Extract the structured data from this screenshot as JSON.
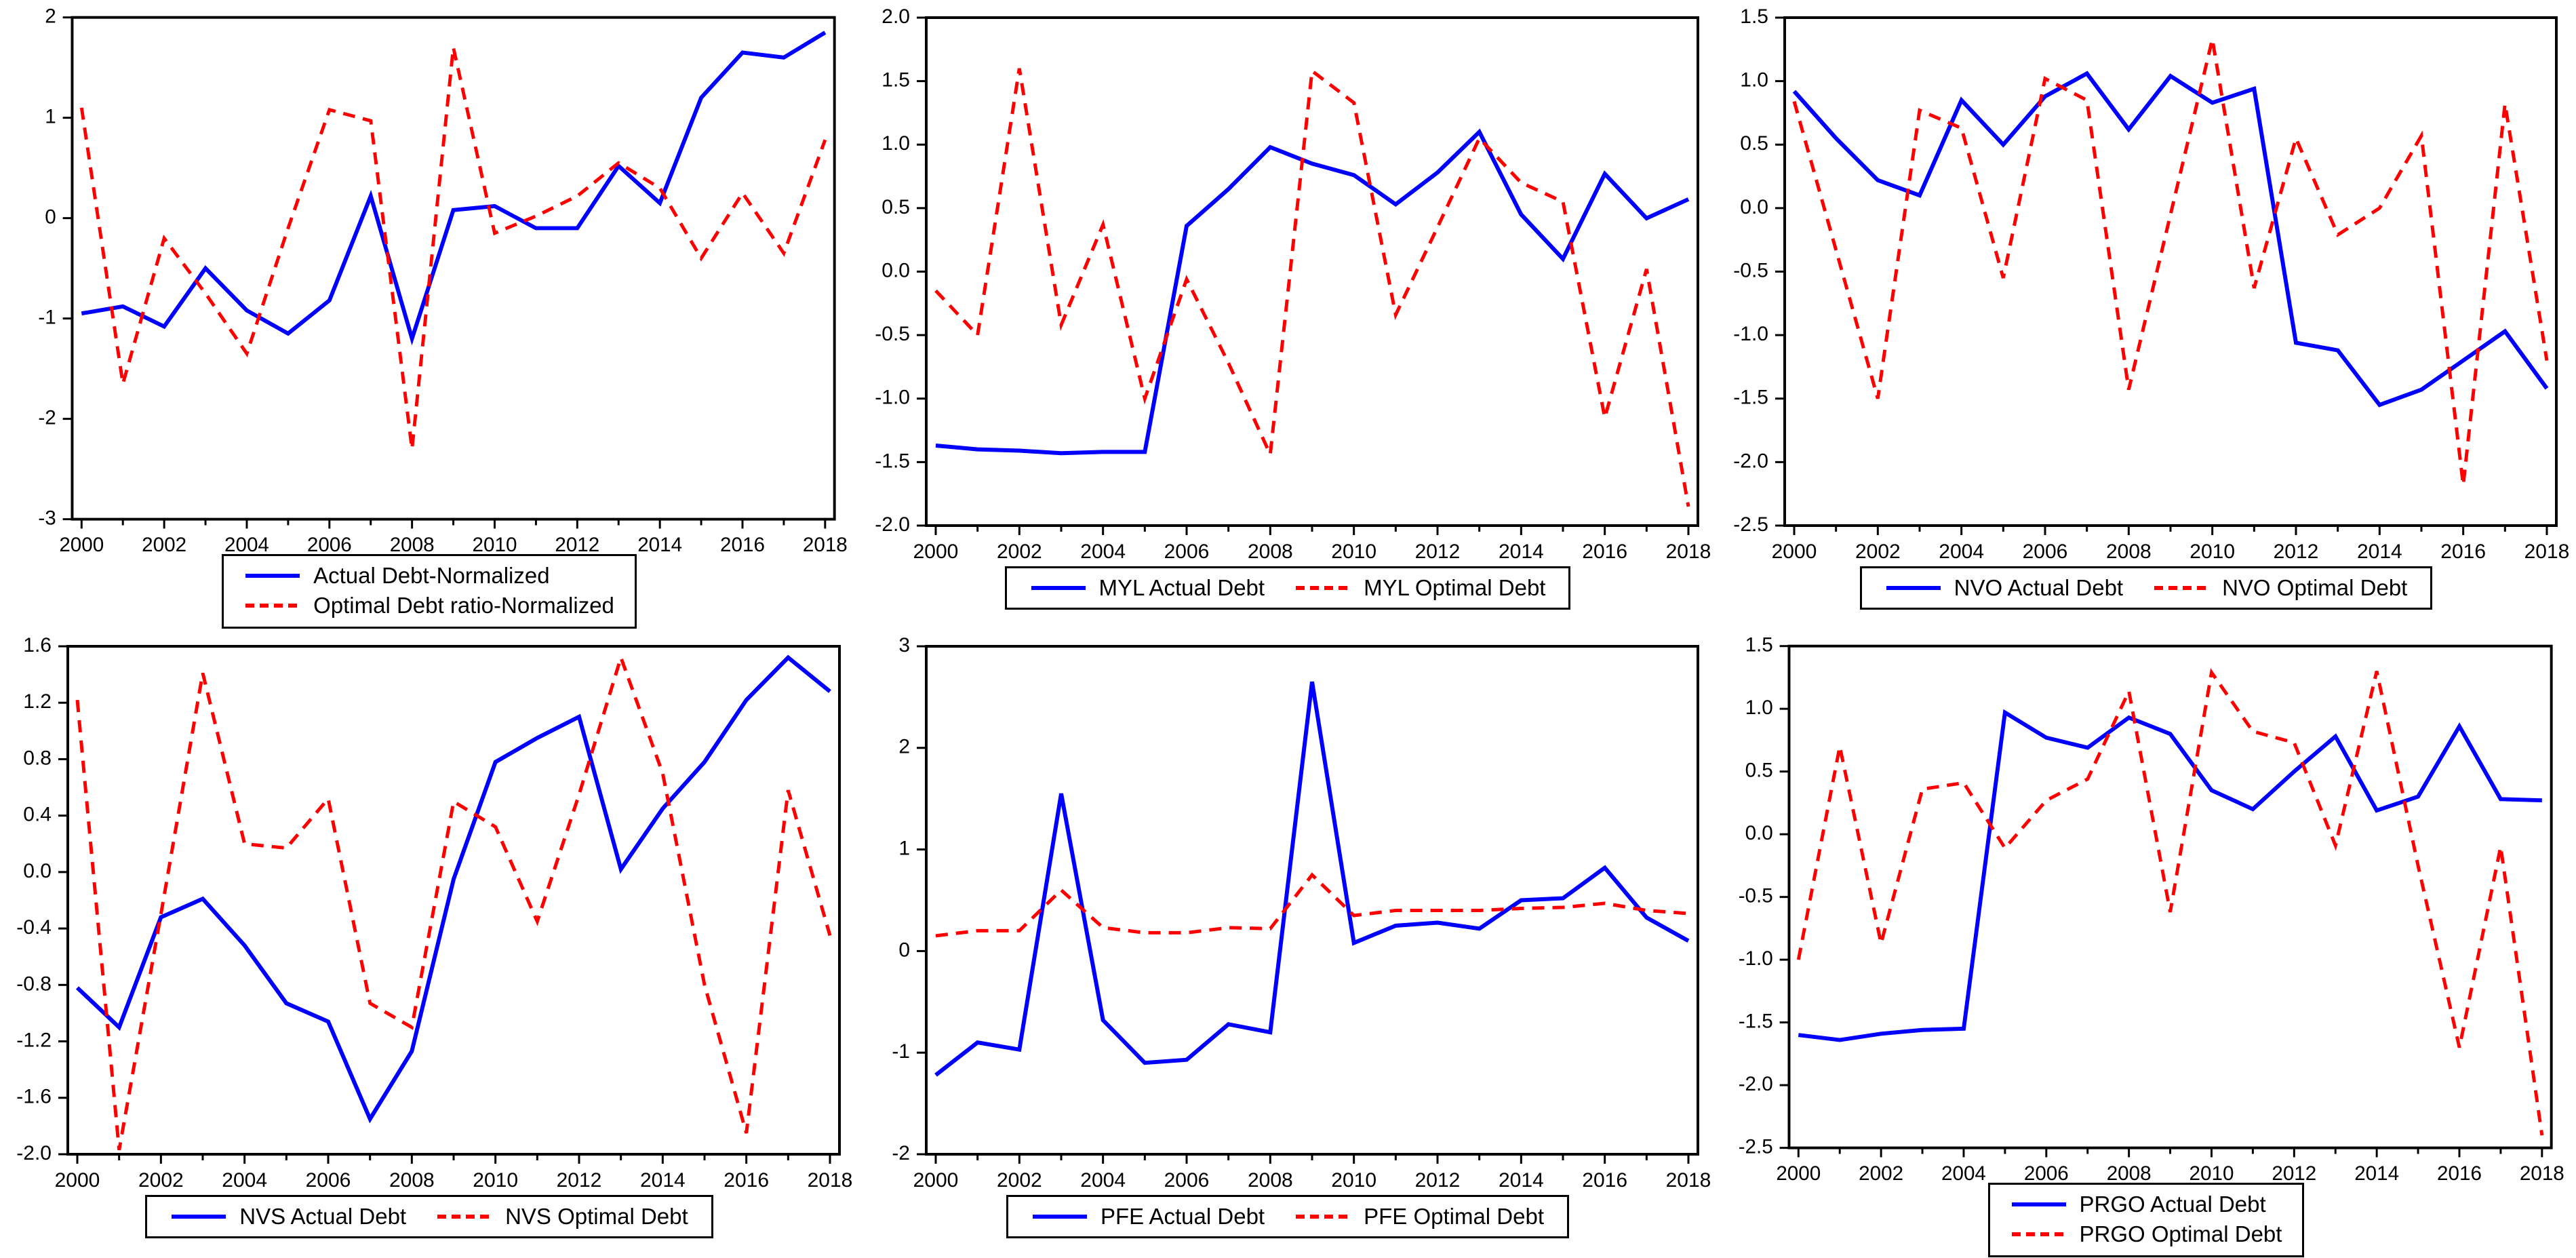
{
  "page": {
    "background": "#ffffff"
  },
  "colors": {
    "actual_line": "#0000FF",
    "optimal_line": "#FF0000",
    "axis": "#000000",
    "plot_background": "#ffffff"
  },
  "years": [
    2000,
    2001,
    2002,
    2003,
    2004,
    2005,
    2006,
    2007,
    2008,
    2009,
    2010,
    2011,
    2012,
    2013,
    2014,
    2015,
    2016,
    2017,
    2018
  ],
  "x_tick_labels": [
    "2000",
    "2002",
    "2004",
    "2006",
    "2008",
    "2010",
    "2012",
    "2014",
    "2016",
    "2018"
  ],
  "chart_data": [
    {
      "id": "normalized-debt",
      "type": "line",
      "title": "",
      "xlabel": "",
      "ylabel": "",
      "legend_position": "below",
      "legend_layout": "stacked",
      "grid": false,
      "ylim": [
        -3,
        2
      ],
      "ytick_labels": [
        "2",
        "1",
        "0",
        "-1",
        "-2",
        "-3"
      ],
      "series": [
        {
          "name": "Actual Debt-Normalized",
          "color": "#0000FF",
          "style": "solid",
          "values": [
            -0.95,
            -0.88,
            -1.08,
            -0.5,
            -0.92,
            -1.15,
            -0.82,
            0.22,
            -1.2,
            0.08,
            0.12,
            -0.1,
            -0.1,
            0.52,
            0.15,
            1.2,
            1.65,
            1.6,
            1.85
          ]
        },
        {
          "name": "Optimal Debt ratio-Normalized",
          "color": "#FF0000",
          "style": "dashed",
          "values": [
            1.1,
            -1.65,
            -0.2,
            -0.75,
            -1.35,
            -0.1,
            1.08,
            0.97,
            -2.3,
            1.7,
            -0.15,
            0.02,
            0.22,
            0.55,
            0.3,
            -0.4,
            0.25,
            -0.35,
            0.78
          ]
        }
      ]
    },
    {
      "id": "myl",
      "type": "line",
      "title": "",
      "xlabel": "",
      "ylabel": "",
      "legend_position": "below",
      "legend_layout": "row",
      "grid": false,
      "ylim": [
        -2,
        2
      ],
      "ytick_labels": [
        "2.0",
        "1.5",
        "1.0",
        "0.5",
        "0.0",
        "-0.5",
        "-1.0",
        "-1.5",
        "-2.0"
      ],
      "series": [
        {
          "name": "MYL Actual Debt",
          "color": "#0000FF",
          "style": "solid",
          "values": [
            -1.37,
            -1.4,
            -1.41,
            -1.43,
            -1.42,
            -1.42,
            0.36,
            0.65,
            0.98,
            0.85,
            0.76,
            0.53,
            0.78,
            1.1,
            0.45,
            0.1,
            0.77,
            0.42,
            0.57
          ]
        },
        {
          "name": "MYL Optimal Debt",
          "color": "#FF0000",
          "style": "dashed",
          "values": [
            -0.15,
            -0.5,
            1.6,
            -0.42,
            0.37,
            -1.0,
            -0.06,
            -0.72,
            -1.44,
            1.58,
            1.33,
            -0.34,
            0.35,
            1.05,
            0.7,
            0.55,
            -1.15,
            0.02,
            -1.85
          ]
        }
      ]
    },
    {
      "id": "nvo",
      "type": "line",
      "title": "",
      "xlabel": "",
      "ylabel": "",
      "legend_position": "below",
      "legend_layout": "row",
      "grid": false,
      "ylim": [
        -2.5,
        1.5
      ],
      "ytick_labels": [
        "1.5",
        "1.0",
        "0.5",
        "0.0",
        "-0.5",
        "-1.0",
        "-1.5",
        "-2.0",
        "-2.5"
      ],
      "series": [
        {
          "name": "NVO Actual Debt",
          "color": "#0000FF",
          "style": "solid",
          "values": [
            0.92,
            0.55,
            0.22,
            0.1,
            0.85,
            0.5,
            0.88,
            1.06,
            0.62,
            1.04,
            0.83,
            0.94,
            -1.06,
            -1.12,
            -1.55,
            -1.43,
            -1.2,
            -0.97,
            -1.42
          ]
        },
        {
          "name": "NVO Optimal Debt",
          "color": "#FF0000",
          "style": "dashed",
          "values": [
            0.84,
            -0.33,
            -1.5,
            0.77,
            0.63,
            -0.55,
            1.02,
            0.85,
            -1.43,
            -0.05,
            1.33,
            -0.63,
            0.55,
            -0.21,
            0.0,
            0.57,
            -2.18,
            0.82,
            -1.2
          ]
        }
      ]
    },
    {
      "id": "nvs",
      "type": "line",
      "title": "",
      "xlabel": "",
      "ylabel": "",
      "legend_position": "below",
      "legend_layout": "row",
      "grid": false,
      "ylim": [
        -2,
        1.6
      ],
      "ytick_labels": [
        "1.6",
        "1.2",
        "0.8",
        "0.4",
        "0.0",
        "-0.4",
        "-0.8",
        "-1.2",
        "-1.6",
        "-2.0"
      ],
      "series": [
        {
          "name": "NVS Actual Debt",
          "color": "#0000FF",
          "style": "solid",
          "values": [
            -0.82,
            -1.1,
            -0.32,
            -0.19,
            -0.52,
            -0.93,
            -1.06,
            -1.75,
            -1.27,
            -0.05,
            0.78,
            0.95,
            1.1,
            0.02,
            0.45,
            0.78,
            1.22,
            1.52,
            1.28
          ]
        },
        {
          "name": "NVS Optimal Debt",
          "color": "#FF0000",
          "style": "dashed",
          "values": [
            1.22,
            -1.97,
            -0.3,
            1.41,
            0.2,
            0.17,
            0.52,
            -0.93,
            -1.1,
            0.5,
            0.32,
            -0.35,
            0.55,
            1.52,
            0.7,
            -0.8,
            -1.85,
            0.58,
            -0.45
          ]
        }
      ]
    },
    {
      "id": "pfe",
      "type": "line",
      "title": "",
      "xlabel": "",
      "ylabel": "",
      "legend_position": "below",
      "legend_layout": "row",
      "grid": false,
      "ylim": [
        -2,
        3
      ],
      "ytick_labels": [
        "3",
        "2",
        "1",
        "0",
        "-1",
        "-2"
      ],
      "series": [
        {
          "name": "PFE Actual Debt",
          "color": "#0000FF",
          "style": "solid",
          "values": [
            -1.22,
            -0.9,
            -0.97,
            1.55,
            -0.68,
            -1.1,
            -1.07,
            -0.72,
            -0.8,
            2.65,
            0.08,
            0.25,
            0.28,
            0.22,
            0.5,
            0.52,
            0.82,
            0.33,
            0.1
          ]
        },
        {
          "name": "PFE Optimal Debt",
          "color": "#FF0000",
          "style": "dashed",
          "values": [
            0.15,
            0.2,
            0.2,
            0.6,
            0.23,
            0.18,
            0.18,
            0.23,
            0.22,
            0.75,
            0.35,
            0.4,
            0.4,
            0.4,
            0.42,
            0.43,
            0.47,
            0.4,
            0.37
          ]
        }
      ]
    },
    {
      "id": "prgo",
      "type": "line",
      "title": "",
      "xlabel": "",
      "ylabel": "",
      "legend_position": "below",
      "legend_layout": "stacked",
      "grid": false,
      "ylim": [
        -2.5,
        1.5
      ],
      "ytick_labels": [
        "1.5",
        "1.0",
        "0.5",
        "0.0",
        "-0.5",
        "-1.0",
        "-1.5",
        "-2.0",
        "-2.5"
      ],
      "series": [
        {
          "name": "PRGO Actual Debt",
          "color": "#0000FF",
          "style": "solid",
          "values": [
            -1.6,
            -1.64,
            -1.59,
            -1.56,
            -1.55,
            0.97,
            0.77,
            0.69,
            0.93,
            0.8,
            0.35,
            0.2,
            0.5,
            0.78,
            0.19,
            0.3,
            0.86,
            0.28,
            0.27
          ]
        },
        {
          "name": "PRGO Optimal Debt",
          "color": "#FF0000",
          "style": "dashed",
          "values": [
            -1.0,
            0.7,
            -0.87,
            0.36,
            0.41,
            -0.11,
            0.27,
            0.44,
            1.14,
            -0.62,
            1.29,
            0.82,
            0.73,
            -0.09,
            1.3,
            -0.25,
            -1.7,
            -0.1,
            -2.4
          ]
        }
      ]
    }
  ]
}
